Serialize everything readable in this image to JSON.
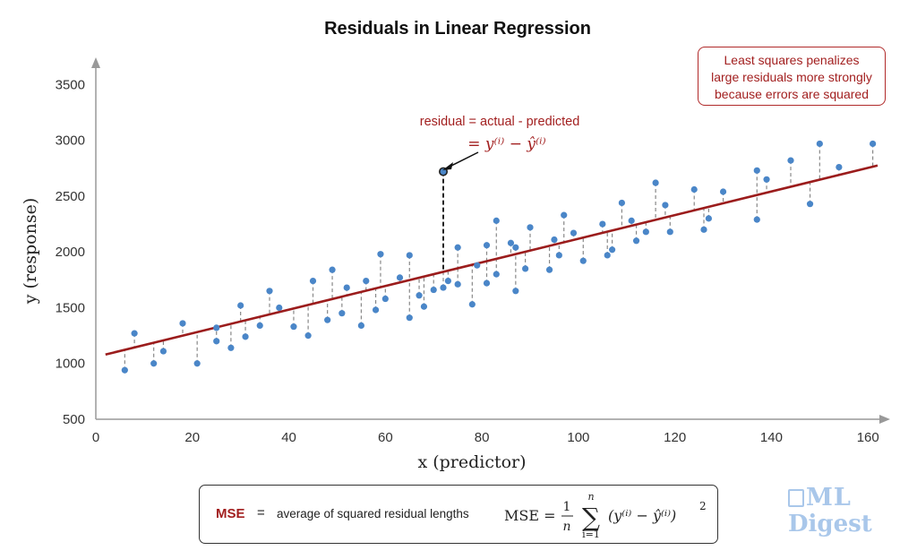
{
  "chart_data": {
    "type": "scatter",
    "title": "Residuals in Linear Regression",
    "xlabel": "x (predictor)",
    "ylabel": "y (response)",
    "xlim": [
      0,
      162
    ],
    "ylim": [
      500,
      3600
    ],
    "x_ticks": [
      0,
      20,
      40,
      60,
      80,
      100,
      120,
      140,
      160
    ],
    "y_ticks": [
      500,
      1000,
      1500,
      2000,
      2500,
      3000,
      3500
    ],
    "grid": false,
    "colors": {
      "points": "#4a86c8",
      "regression_line": "#9b1c1c",
      "residual_lines": "#888888",
      "highlight": "#222222"
    },
    "regression_line": {
      "x": [
        2,
        162
      ],
      "y": [
        1080,
        2775
      ]
    },
    "points": [
      {
        "x": 6,
        "y": 940
      },
      {
        "x": 8,
        "y": 1270
      },
      {
        "x": 12,
        "y": 1000
      },
      {
        "x": 14,
        "y": 1110
      },
      {
        "x": 18,
        "y": 1360
      },
      {
        "x": 21,
        "y": 1000
      },
      {
        "x": 25,
        "y": 1320
      },
      {
        "x": 25,
        "y": 1200
      },
      {
        "x": 28,
        "y": 1140
      },
      {
        "x": 30,
        "y": 1520
      },
      {
        "x": 31,
        "y": 1240
      },
      {
        "x": 34,
        "y": 1340
      },
      {
        "x": 36,
        "y": 1650
      },
      {
        "x": 38,
        "y": 1500
      },
      {
        "x": 41,
        "y": 1330
      },
      {
        "x": 44,
        "y": 1250
      },
      {
        "x": 45,
        "y": 1740
      },
      {
        "x": 48,
        "y": 1390
      },
      {
        "x": 49,
        "y": 1840
      },
      {
        "x": 51,
        "y": 1450
      },
      {
        "x": 52,
        "y": 1680
      },
      {
        "x": 55,
        "y": 1340
      },
      {
        "x": 56,
        "y": 1740
      },
      {
        "x": 58,
        "y": 1480
      },
      {
        "x": 59,
        "y": 1980
      },
      {
        "x": 60,
        "y": 1580
      },
      {
        "x": 63,
        "y": 1770
      },
      {
        "x": 65,
        "y": 1410
      },
      {
        "x": 65,
        "y": 1970
      },
      {
        "x": 67,
        "y": 1610
      },
      {
        "x": 68,
        "y": 1510
      },
      {
        "x": 70,
        "y": 1660
      },
      {
        "x": 72,
        "y": 1680
      },
      {
        "x": 73,
        "y": 1740
      },
      {
        "x": 75,
        "y": 1710
      },
      {
        "x": 75,
        "y": 2040
      },
      {
        "x": 78,
        "y": 1530
      },
      {
        "x": 79,
        "y": 1880
      },
      {
        "x": 81,
        "y": 1720
      },
      {
        "x": 81,
        "y": 2060
      },
      {
        "x": 83,
        "y": 1800
      },
      {
        "x": 83,
        "y": 2280
      },
      {
        "x": 86,
        "y": 2080
      },
      {
        "x": 87,
        "y": 2040
      },
      {
        "x": 87,
        "y": 1650
      },
      {
        "x": 89,
        "y": 1850
      },
      {
        "x": 90,
        "y": 2220
      },
      {
        "x": 94,
        "y": 1840
      },
      {
        "x": 95,
        "y": 2110
      },
      {
        "x": 96,
        "y": 1970
      },
      {
        "x": 97,
        "y": 2330
      },
      {
        "x": 99,
        "y": 2170
      },
      {
        "x": 101,
        "y": 1920
      },
      {
        "x": 105,
        "y": 2250
      },
      {
        "x": 106,
        "y": 1970
      },
      {
        "x": 107,
        "y": 2020
      },
      {
        "x": 109,
        "y": 2440
      },
      {
        "x": 111,
        "y": 2280
      },
      {
        "x": 112,
        "y": 2100
      },
      {
        "x": 114,
        "y": 2180
      },
      {
        "x": 116,
        "y": 2620
      },
      {
        "x": 118,
        "y": 2420
      },
      {
        "x": 119,
        "y": 2180
      },
      {
        "x": 124,
        "y": 2560
      },
      {
        "x": 126,
        "y": 2200
      },
      {
        "x": 127,
        "y": 2300
      },
      {
        "x": 130,
        "y": 2540
      },
      {
        "x": 137,
        "y": 2290
      },
      {
        "x": 137,
        "y": 2730
      },
      {
        "x": 139,
        "y": 2650
      },
      {
        "x": 144,
        "y": 2820
      },
      {
        "x": 148,
        "y": 2430
      },
      {
        "x": 150,
        "y": 2970
      },
      {
        "x": 154,
        "y": 2760
      },
      {
        "x": 161,
        "y": 2970
      }
    ],
    "highlight_point": {
      "x": 72,
      "y": 2720
    },
    "annotations": {
      "residual_label": "residual = actual - predicted",
      "residual_formula": "= y⁽ⁱ⁾ − ŷ⁽ⁱ⁾",
      "note": "Least squares penalizes\nlarge residuals more strongly\nbecause errors are squared"
    }
  },
  "mse_box": {
    "key": "MSE",
    "equals": "=",
    "description": "average of squared residual lengths",
    "formula_lhs": "MSE =",
    "frac_num": "1",
    "frac_den": "n",
    "sum_top": "n",
    "sum_bottom": "i=1",
    "sum_symbol": "∑",
    "formula_body": "(y⁽ⁱ⁾ − ŷ⁽ⁱ⁾)",
    "formula_power": "2"
  },
  "logo": {
    "line1": "ML",
    "line2": "Digest"
  }
}
